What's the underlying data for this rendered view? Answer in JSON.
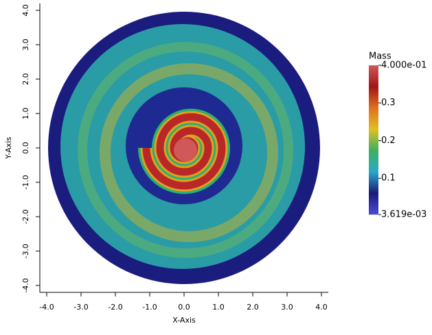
{
  "chart_data": {
    "type": "image",
    "xlabel": "X-Axis",
    "ylabel": "Y-Axis",
    "xlim": [
      -4.2,
      4.2
    ],
    "ylim": [
      -4.2,
      4.2
    ],
    "xticks": [
      {
        "value": -4,
        "label": "-4.0"
      },
      {
        "value": -3,
        "label": "-3.0"
      },
      {
        "value": -2,
        "label": "-2.0"
      },
      {
        "value": -1,
        "label": "-1.0"
      },
      {
        "value": 0,
        "label": "0.0"
      },
      {
        "value": 1,
        "label": "1.0"
      },
      {
        "value": 2,
        "label": "2.0"
      },
      {
        "value": 3,
        "label": "3.0"
      },
      {
        "value": 4,
        "label": "4.0"
      }
    ],
    "yticks": [
      {
        "value": -4,
        "label": "-4.0"
      },
      {
        "value": -3,
        "label": "-3.0"
      },
      {
        "value": -2,
        "label": "-2.0"
      },
      {
        "value": -1,
        "label": "-1.0"
      },
      {
        "value": 0,
        "label": "0.0"
      },
      {
        "value": 1,
        "label": "1.0"
      },
      {
        "value": 2,
        "label": "2.0"
      },
      {
        "value": 3,
        "label": "3.0"
      },
      {
        "value": 4,
        "label": "4.0"
      }
    ],
    "colorbar": {
      "title": "Mass",
      "lim": [
        0.003619,
        0.4
      ],
      "ticks": [
        {
          "value": 0.4,
          "label": "4.000e-01"
        },
        0.3,
        0.2,
        0.1,
        {
          "value": 0.003619,
          "label": "3.619e-03"
        }
      ],
      "colors": [
        "#4a4ad8",
        "#1a1a7a",
        "#2aa8c8",
        "#3cb060",
        "#e0c020",
        "#e07020",
        "#a01818",
        "#d05858"
      ]
    }
  }
}
